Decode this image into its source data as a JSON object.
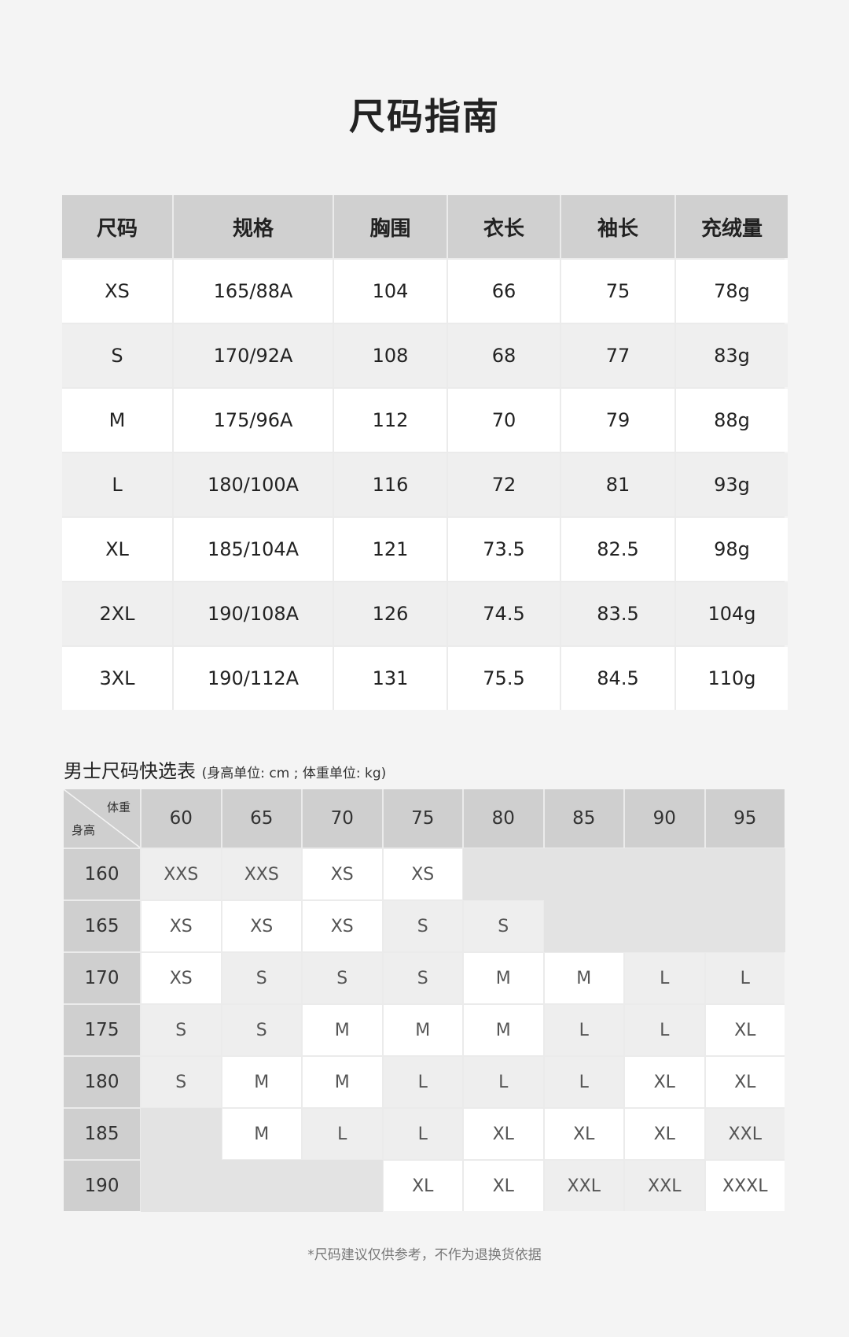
{
  "title": "尺码指南",
  "size_table": {
    "headers": [
      "尺码",
      "规格",
      "胸围",
      "衣长",
      "袖长",
      "充绒量"
    ],
    "rows": [
      [
        "XS",
        "165/88A",
        "104",
        "66",
        "75",
        "78g"
      ],
      [
        "S",
        "170/92A",
        "108",
        "68",
        "77",
        "83g"
      ],
      [
        "M",
        "175/96A",
        "112",
        "70",
        "79",
        "88g"
      ],
      [
        "L",
        "180/100A",
        "116",
        "72",
        "81",
        "93g"
      ],
      [
        "XL",
        "185/104A",
        "121",
        "73.5",
        "82.5",
        "98g"
      ],
      [
        "2XL",
        "190/108A",
        "126",
        "74.5",
        "83.5",
        "104g"
      ],
      [
        "3XL",
        "190/112A",
        "131",
        "75.5",
        "84.5",
        "110g"
      ]
    ]
  },
  "quick_table": {
    "title": "男士尺码快选表",
    "subtitle": "(身高单位: cm ; 体重单位: kg)",
    "corner_weight": "体重",
    "corner_height": "身高",
    "weights": [
      "60",
      "65",
      "70",
      "75",
      "80",
      "85",
      "90",
      "95"
    ],
    "rows": [
      {
        "height": "160",
        "sizes": [
          "XXS",
          "XXS",
          "XS",
          "XS",
          "",
          "",
          "",
          ""
        ]
      },
      {
        "height": "165",
        "sizes": [
          "XS",
          "XS",
          "XS",
          "S",
          "S",
          "",
          "",
          ""
        ]
      },
      {
        "height": "170",
        "sizes": [
          "XS",
          "S",
          "S",
          "S",
          "M",
          "M",
          "L",
          "L"
        ]
      },
      {
        "height": "175",
        "sizes": [
          "S",
          "S",
          "M",
          "M",
          "M",
          "L",
          "L",
          "XL"
        ]
      },
      {
        "height": "180",
        "sizes": [
          "S",
          "M",
          "M",
          "L",
          "L",
          "L",
          "XL",
          "XL"
        ]
      },
      {
        "height": "185",
        "sizes": [
          "",
          "M",
          "L",
          "L",
          "XL",
          "XL",
          "XL",
          "XXL"
        ]
      },
      {
        "height": "190",
        "sizes": [
          "",
          "",
          "",
          "XL",
          "XL",
          "XXL",
          "XXL",
          "XXXL"
        ]
      }
    ],
    "shaded_sizes": [
      "XXS",
      "S",
      "L",
      "XXL"
    ]
  },
  "footnote": "*尺码建议仅供参考，不作为退换货依据"
}
